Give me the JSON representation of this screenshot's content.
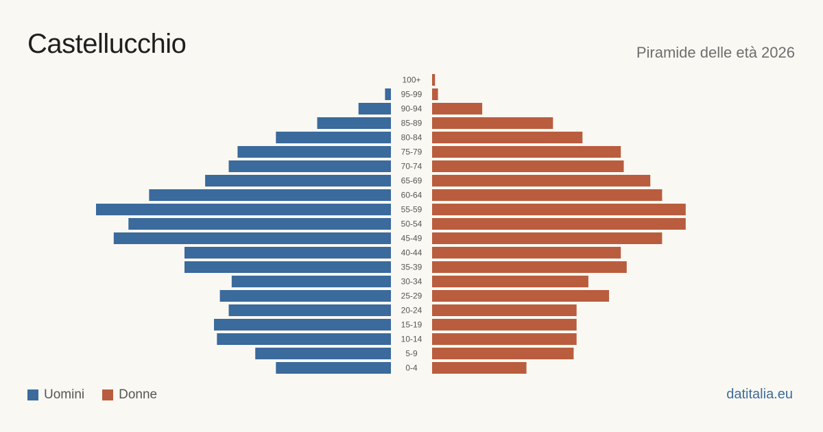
{
  "header": {
    "title": "Castellucchio",
    "subtitle": "Piramide delle età 2026"
  },
  "legend": {
    "men_label": "Uomini",
    "women_label": "Donne"
  },
  "footer": {
    "source": "datitalia.eu"
  },
  "colors": {
    "men": "#3b6a9c",
    "women": "#b95d3e",
    "background": "#faf8f3"
  },
  "chart_data": {
    "type": "bar",
    "orientation": "horizontal-pyramid",
    "categories": [
      "100+",
      "95-99",
      "90-94",
      "85-89",
      "80-84",
      "75-79",
      "70-74",
      "65-69",
      "60-64",
      "55-59",
      "50-54",
      "45-49",
      "40-44",
      "35-39",
      "30-34",
      "25-29",
      "20-24",
      "15-19",
      "10-14",
      "5-9",
      "0-4"
    ],
    "series": [
      {
        "name": "Uomini",
        "values": [
          0,
          2,
          11,
          25,
          39,
          52,
          55,
          63,
          82,
          100,
          89,
          94,
          70,
          70,
          54,
          58,
          55,
          60,
          59,
          46,
          39
        ]
      },
      {
        "name": "Donne",
        "values": [
          1,
          2,
          17,
          41,
          51,
          64,
          65,
          74,
          78,
          86,
          86,
          78,
          64,
          66,
          53,
          60,
          49,
          49,
          49,
          48,
          32
        ]
      }
    ],
    "legend_position": "bottom-left",
    "grid": false
  }
}
